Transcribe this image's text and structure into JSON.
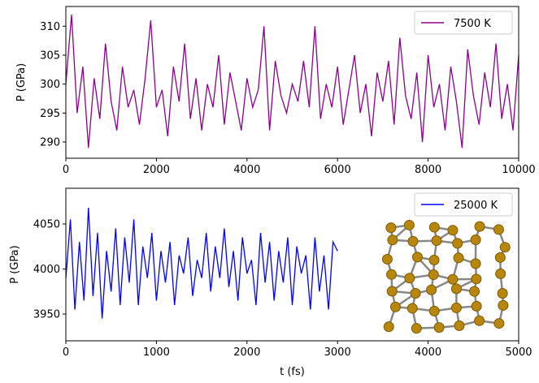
{
  "chart_data": [
    {
      "type": "line",
      "y_label": "P (GPa)",
      "legend": "upper right",
      "xlim": [
        0,
        10000
      ],
      "xticks": [
        0,
        2000,
        4000,
        6000,
        8000,
        10000
      ],
      "ylim": [
        287.2,
        313.4
      ],
      "yticks": [
        290,
        295,
        300,
        305,
        310
      ],
      "x": [
        0,
        125,
        250,
        375,
        500,
        625,
        750,
        875,
        1000,
        1125,
        1250,
        1375,
        1500,
        1625,
        1750,
        1875,
        2000,
        2125,
        2250,
        2375,
        2500,
        2625,
        2750,
        2875,
        3000,
        3125,
        3250,
        3375,
        3500,
        3625,
        3750,
        3875,
        4000,
        4125,
        4250,
        4375,
        4500,
        4625,
        4750,
        4875,
        5000,
        5125,
        5250,
        5375,
        5500,
        5625,
        5750,
        5875,
        6000,
        6125,
        6250,
        6375,
        6500,
        6625,
        6750,
        6875,
        7000,
        7125,
        7250,
        7375,
        7500,
        7625,
        7750,
        7875,
        8000,
        8125,
        8250,
        8375,
        8500,
        8625,
        8750,
        8875,
        9000,
        9125,
        9250,
        9375,
        9500,
        9625,
        9750,
        9875,
        10000
      ],
      "series": [
        {
          "name": "7500 K",
          "color": "#8b008b",
          "values": [
            300,
            312,
            295,
            303,
            289,
            301,
            294,
            307,
            297,
            292,
            303,
            296,
            299,
            293,
            301,
            311,
            296,
            299,
            291,
            303,
            297,
            307,
            294,
            301,
            292,
            300,
            296,
            305,
            293,
            302,
            297,
            292,
            301,
            296,
            299,
            310,
            292,
            304,
            298,
            295,
            300,
            297,
            304,
            296,
            310,
            294,
            300,
            296,
            303,
            293,
            299,
            305,
            295,
            300,
            291,
            302,
            297,
            304,
            293,
            308,
            298,
            294,
            302,
            290,
            305,
            296,
            300,
            292,
            303,
            297,
            289,
            306,
            298,
            293,
            302,
            296,
            307,
            294,
            300,
            292,
            305
          ]
        }
      ]
    },
    {
      "type": "line",
      "y_label": "P (GPa)",
      "x_label": "t (fs)",
      "legend": "upper right",
      "xlim": [
        0,
        5000
      ],
      "xticks": [
        0,
        1000,
        2000,
        3000,
        4000,
        5000
      ],
      "ylim": [
        3920.3,
        4089.6
      ],
      "yticks": [
        3950,
        4000,
        4050
      ],
      "x": [
        0,
        50,
        100,
        150,
        200,
        250,
        300,
        350,
        400,
        450,
        500,
        550,
        600,
        650,
        700,
        750,
        800,
        850,
        900,
        950,
        1000,
        1050,
        1100,
        1150,
        1200,
        1250,
        1300,
        1350,
        1400,
        1450,
        1500,
        1550,
        1600,
        1650,
        1700,
        1750,
        1800,
        1850,
        1900,
        1950,
        2000,
        2050,
        2100,
        2150,
        2200,
        2250,
        2300,
        2350,
        2400,
        2450,
        2500,
        2550,
        2600,
        2650,
        2700,
        2750,
        2800,
        2850,
        2900,
        2950,
        3000
      ],
      "series": [
        {
          "name": "25000 K",
          "color": "#0000ff",
          "values": [
            3990,
            4055,
            3955,
            4030,
            3965,
            4068,
            3970,
            4040,
            3945,
            4020,
            3975,
            4045,
            3960,
            4035,
            3985,
            4055,
            3960,
            4025,
            3990,
            4040,
            3965,
            4020,
            3985,
            4030,
            3960,
            4015,
            3995,
            4035,
            3970,
            4010,
            3990,
            4040,
            3975,
            4025,
            3990,
            4045,
            3980,
            4020,
            3965,
            4035,
            3995,
            4010,
            3960,
            4040,
            3985,
            4030,
            3965,
            4020,
            3985,
            4035,
            3960,
            4025,
            3995,
            4015,
            3955,
            4035,
            3975,
            4015,
            3955,
            4030,
            4020
          ]
        }
      ]
    }
  ]
}
